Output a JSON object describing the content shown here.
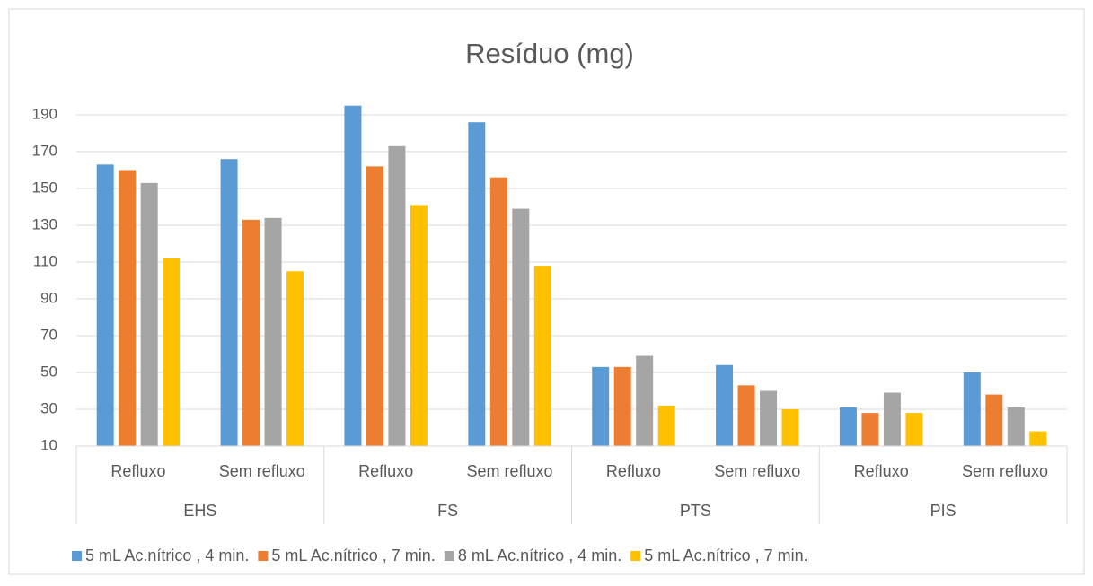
{
  "chart_data": {
    "type": "bar",
    "title": "Resíduo (mg)",
    "categories": [
      "Refluxo",
      "Sem refluxo",
      "Refluxo",
      "Sem refluxo",
      "Refluxo",
      "Sem refluxo",
      "Refluxo",
      "Sem refluxo"
    ],
    "category_groups": [
      "EHS",
      "FS",
      "PTS",
      "PIS"
    ],
    "series": [
      {
        "name": "5 mL Ac.nítrico , 4 min.",
        "color": "#5b9bd5",
        "values": [
          163,
          166,
          195,
          186,
          53,
          54,
          31,
          50
        ]
      },
      {
        "name": "5 mL Ac.nítrico , 7 min.",
        "color": "#ed7d31",
        "values": [
          160,
          133,
          162,
          156,
          53,
          43,
          28,
          38
        ]
      },
      {
        "name": "8 mL Ac.nítrico , 4 min.",
        "color": "#a5a5a5",
        "values": [
          153,
          134,
          173,
          139,
          59,
          40,
          39,
          31
        ]
      },
      {
        "name": "5 mL Ac.nítrico , 7 min.",
        "color": "#ffc000",
        "values": [
          112,
          105,
          141,
          108,
          32,
          30,
          28,
          18
        ]
      }
    ],
    "ylim": [
      10,
      200
    ],
    "yticks": [
      10,
      30,
      50,
      70,
      90,
      110,
      130,
      150,
      170,
      190
    ],
    "grid": true,
    "legend": "bottom"
  }
}
